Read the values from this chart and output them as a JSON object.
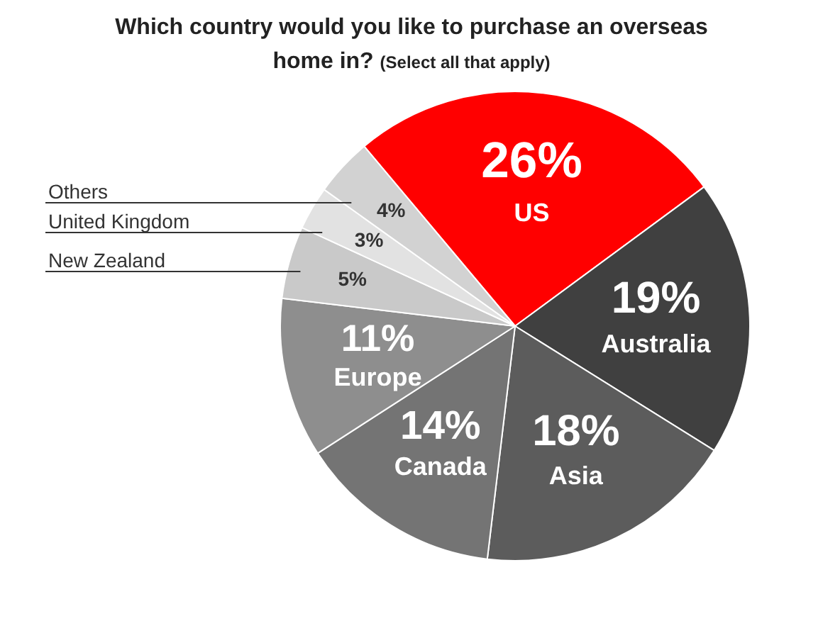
{
  "chart_data": {
    "type": "pie",
    "title": "Which country would you like to purchase an overseas home in?",
    "subtitle": "(Select all that apply)",
    "categories": [
      "US",
      "Australia",
      "Asia",
      "Canada",
      "Europe",
      "New Zealand",
      "United Kingdom",
      "Others"
    ],
    "values": [
      26,
      19,
      18,
      14,
      11,
      5,
      3,
      4
    ],
    "colors": [
      "#ff0000",
      "#404040",
      "#5c5c5c",
      "#747474",
      "#8e8e8e",
      "#c9c9c9",
      "#e2e2e2",
      "#d2d2d2"
    ],
    "value_labels": [
      "26%",
      "19%",
      "18%",
      "14%",
      "11%",
      "5%",
      "3%",
      "4%"
    ],
    "legend": false
  }
}
